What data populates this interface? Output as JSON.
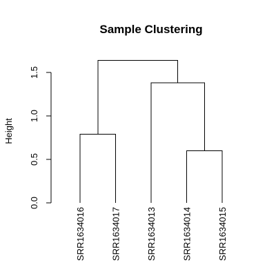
{
  "chart_data": {
    "type": "dendrogram",
    "title": "Sample Clustering",
    "xlabel": "",
    "ylabel": "Height",
    "ylim": [
      0,
      1.6
    ],
    "yticks": [
      0.0,
      0.5,
      1.0,
      1.5
    ],
    "ytick_labels": [
      "0.0",
      "0.5",
      "1.0",
      "1.5"
    ],
    "grid": false,
    "leaves": [
      "SRR1634016",
      "SRR1634017",
      "SRR1634013",
      "SRR1634014",
      "SRR1634015"
    ],
    "merges": [
      {
        "left": "leaf:0",
        "right": "leaf:1",
        "height": 0.79
      },
      {
        "left": "leaf:3",
        "right": "leaf:4",
        "height": 0.6
      },
      {
        "left": "leaf:2",
        "right": "merge:1",
        "height": 1.38
      },
      {
        "left": "merge:0",
        "right": "merge:2",
        "height": 1.64
      }
    ]
  }
}
